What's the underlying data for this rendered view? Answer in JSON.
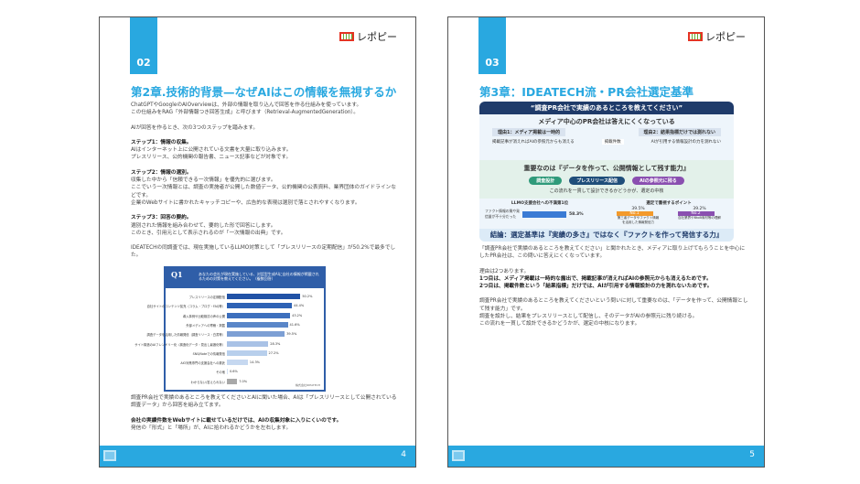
{
  "logo_text": "レポピー",
  "pages": [
    {
      "section": "02",
      "page_number": "4",
      "heading": "第2章.技術的背景—なぜAIはこの情報を無視するか",
      "paragraphs": [
        "ChatGPTやGoogleのAIOverviewは、外部の情報を取り込んで回答を作る仕組みを使っています。\nこの仕組みをRAG「外部情報つき回答生成」と呼びます（Retrieval-AugmentedGeneration）。",
        "AIが回答を作るとき、次の3つのステップを踏みます。"
      ],
      "steps": [
        {
          "title": "ステップ1：情報の収集。",
          "text": "AIはインターネット上に公開されている文書を大量に取り込みます。\nプレスリリース、公的機関の報告書、ニュース記事などが対象です。"
        },
        {
          "title": "ステップ2：情報の選別。",
          "text": "収集した中から「信頼できる一次情報」を優先的に選びます。\nここでいう一次情報とは、調査の実施者が公開した数値データ、公的機関の公表資料、業界団体のガイドラインなどです。\n企業のWebサイトに書かれたキャッチコピーや、広告的な表現は選別で落とされやすくなります。"
        },
        {
          "title": "ステップ3：回答の要約。",
          "text": "選別された情報を組み合わせて、要約した形で回答にします。\nこのとき、引用元として表示されるのが「一次情報の出典」です。"
        }
      ],
      "survey_text": "IDEATECHの同調査では、現在実施しているLLMO対策として「プレスリリースの定期配信」が50.2%で最多でした。",
      "after_chart": "調査PR会社で実績のあるところを教えてくださいとAIに聞いた場合、AIは「プレスリリースとして公開されている調査データ」から回答を組み立てます。",
      "emphasis": "会社の実績件数をWebサイトに載せているだけでは、AIの収集対象に入りにくいのです。",
      "closing": "発信の「形式」と「場所」が、AIに拾われるかどうかを左右します。",
      "chart_data": {
        "type": "bar",
        "orientation": "horizontal",
        "title_label": "Q1",
        "title": "あなたの会社が現在実施している、対話型生成AIに自社の情報が掲載されるための対策を教えてください。（複数回答）",
        "categories": [
          "プレスリリースの定期配信",
          "自社サイトのコンテンツ拡充（コラム・ブログ・FAQ等）",
          "導入事例や比較検討の声の公開",
          "外部メディアへの寄稿・掲載",
          "調査データを活用した情報発信（調査リリース・白書等）",
          "サイト構造のAIフレンドリー化（構造化データ・見出し最適化等）",
          "SNS/Noteでの情報発信",
          "AIO対策専門の支援会社への委託",
          "その他",
          "わからない/答えられない"
        ],
        "values": [
          50.2,
          44.4,
          43.2,
          41.6,
          39.5,
          28.3,
          27.2,
          14.3,
          0.6,
          7.0
        ],
        "value_labels": [
          "50.2%",
          "44.4%",
          "43.2%",
          "41.6%",
          "39.5%",
          "28.3%",
          "27.2%",
          "14.3%",
          "0.6%",
          "7.0%"
        ],
        "colors": [
          "#2152a6",
          "#2e62b5",
          "#3d6fbd",
          "#5a86c8",
          "#7d9fd4",
          "#a9c2e6",
          "#b8cfec",
          "#c6d8f0",
          "#d5e2f4",
          "#a8a8a8"
        ],
        "source": "株式会社IDEATECH"
      }
    },
    {
      "section": "03",
      "page_number": "5",
      "heading": "第3章：IDEATECH流・PR会社選定基準",
      "info": {
        "top": "“調査PR会社で実績のあるところを教えてください”",
        "sub": "メディア中心のPR会社は答えにくくなっている",
        "reason1": "理由1：メディア掲載は一時的",
        "reason2": "理由2：結果指標だけでは測れない",
        "reason1_note": "掲載記事が消えればAIの参照元からも消える",
        "reason2_note": "AIが引用する情報設計の力を測れない",
        "badge": "掲載件数",
        "key": "重要なのは『データを作って、公開情報として残す能力』",
        "flow": [
          "調査設計",
          "プレスリリース配信",
          "AIの参照元に残る"
        ],
        "flow_colors": [
          "#2f9a7a",
          "#1f4e7a",
          "#8a4fb0"
        ],
        "flow_note": "この流れを一貫して設計できるかどうかが、選定の中核",
        "left_title": "LLMO支援会社への不満第1位",
        "left_label": "ファクト情報の質や発信量が不十分だった",
        "left_value": "58.3%",
        "right_title": "選定で重視するポイント",
        "no1_value": "39.5%",
        "no1": "No.1",
        "no1_label": "第三者データやファクト情報を活用した情報発信力",
        "no2_value": "39.2%",
        "no2": "No.2",
        "no2_label": "自社業界やBtoB商材等の理解",
        "conclusion": "結論：選定基準は『実績の多さ』ではなく『ファクトを作って発信する力』"
      },
      "paragraphs": [
        "「調査PR会社で実績のあるところを教えてください」と聞かれたとき、メディアに取り上げてもらうことを中心にしたPR会社は、この問いに答えにくくなっています。",
        "理由は2つあります。"
      ],
      "reasons_bold": "1つ目は、メディア掲載は一時的な露出で、掲載記事が消えればAIの参照元からも消えるためです。\n2つ目は、掲載件数という「結果指標」だけでは、AIが引用する情報設計の力を測れないためです。",
      "final": "調査PR会社で実績のあるところを教えてくださいという問いに対して重要なのは、「データを作って、公開情報として残す能力」です。\n調査を設計し、結果をプレスリリースとして配信し、そのデータがAIの参照元に残り続ける。\nこの流れを一貫して設計できるかどうかが、選定の中核になります。"
    }
  ]
}
